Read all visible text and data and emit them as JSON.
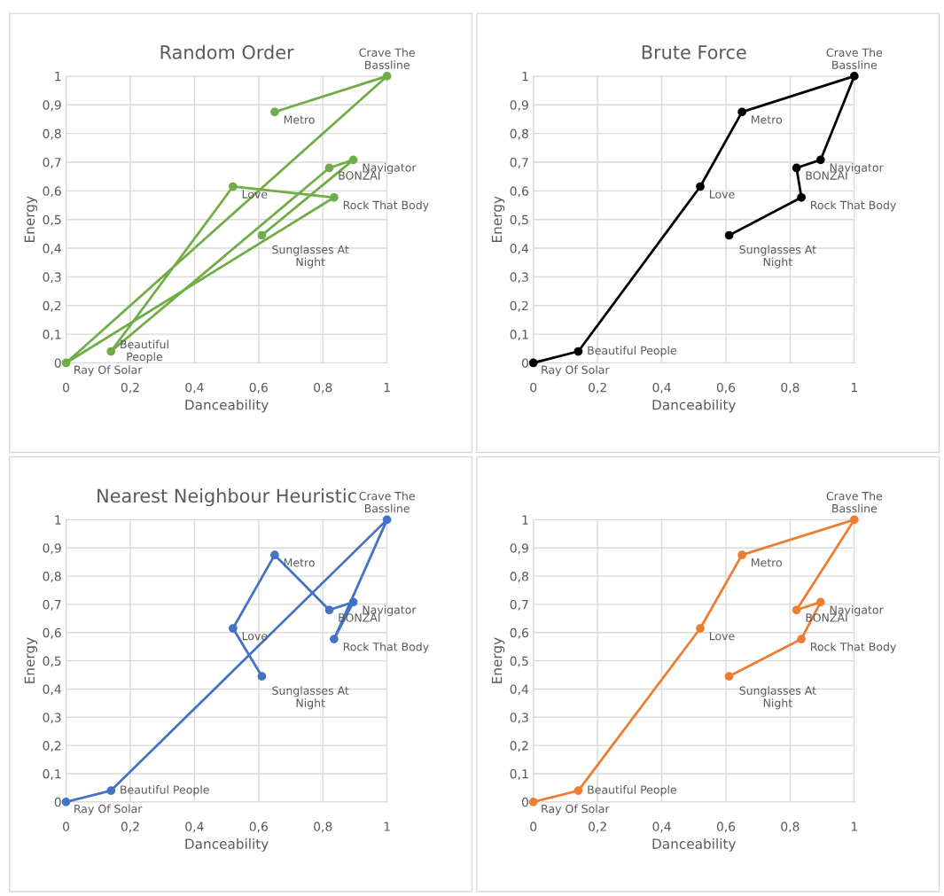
{
  "chart_data": [
    {
      "type": "line",
      "title": "Random Order",
      "xlabel": "Danceability",
      "ylabel": "Energy",
      "xlim": [
        0,
        1
      ],
      "ylim": [
        0,
        1
      ],
      "grid": true,
      "marker": "circle",
      "line_style": "solid",
      "xticks": [
        0,
        {
          "value": 0.2,
          "label": "0,2"
        },
        {
          "value": 0.4,
          "label": "0,4"
        },
        {
          "value": 0.6,
          "label": "0,6"
        },
        {
          "value": 0.8,
          "label": "0,8"
        },
        1
      ],
      "yticks": [
        0,
        {
          "value": 0.1,
          "label": "0,1"
        },
        {
          "value": 0.2,
          "label": "0,2"
        },
        {
          "value": 0.3,
          "label": "0,3"
        },
        {
          "value": 0.4,
          "label": "0,4"
        },
        {
          "value": 0.5,
          "label": "0,5"
        },
        {
          "value": 0.6,
          "label": "0,6"
        },
        {
          "value": 0.7,
          "label": "0,7"
        },
        {
          "value": 0.8,
          "label": "0,8"
        },
        {
          "value": 0.9,
          "label": "0,9"
        },
        1
      ],
      "series": [
        {
          "color": "#70ad47",
          "x": [
            0.65,
            1,
            0,
            0.835,
            0.52,
            0.14,
            0.82,
            0.895,
            0.61
          ],
          "values": [
            0.875,
            1,
            0,
            0.577,
            0.615,
            0.04,
            0.68,
            0.708,
            0.445
          ]
        }
      ],
      "annotations": [
        {
          "text": "Metro",
          "x": 0.65,
          "y": 0.875
        },
        {
          "text": "Crave The\nBassline",
          "x": 1,
          "y": 1
        },
        {
          "text": "Ray Of Solar",
          "x": 0,
          "y": 0
        },
        {
          "text": "Rock That Body",
          "x": 0.835,
          "y": 0.577
        },
        {
          "text": "Love",
          "x": 0.52,
          "y": 0.615
        },
        {
          "text": "Beautiful\nPeople",
          "x": 0.14,
          "y": 0.04
        },
        {
          "text": "BONZAI",
          "x": 0.82,
          "y": 0.68
        },
        {
          "text": "Navigator",
          "x": 0.895,
          "y": 0.708
        },
        {
          "text": "Sunglasses At\nNight",
          "x": 0.61,
          "y": 0.445
        }
      ]
    },
    {
      "type": "line",
      "title": "Brute Force",
      "xlabel": "Danceability",
      "ylabel": "Energy",
      "xlim": [
        0,
        1
      ],
      "ylim": [
        0,
        1
      ],
      "grid": true,
      "marker": "circle",
      "line_style": "solid",
      "xticks": [
        0,
        {
          "value": 0.2,
          "label": "0,2"
        },
        {
          "value": 0.4,
          "label": "0,4"
        },
        {
          "value": 0.6,
          "label": "0,6"
        },
        {
          "value": 0.8,
          "label": "0,8"
        },
        1
      ],
      "yticks": [
        0,
        {
          "value": 0.1,
          "label": "0,1"
        },
        {
          "value": 0.2,
          "label": "0,2"
        },
        {
          "value": 0.3,
          "label": "0,3"
        },
        {
          "value": 0.4,
          "label": "0,4"
        },
        {
          "value": 0.5,
          "label": "0,5"
        },
        {
          "value": 0.6,
          "label": "0,6"
        },
        {
          "value": 0.7,
          "label": "0,7"
        },
        {
          "value": 0.8,
          "label": "0,8"
        },
        {
          "value": 0.9,
          "label": "0,9"
        },
        1
      ],
      "series": [
        {
          "color": "#000000",
          "x": [
            0,
            0.14,
            0.52,
            0.65,
            1,
            0.895,
            0.82,
            0.835,
            0.61
          ],
          "values": [
            0,
            0.04,
            0.615,
            0.875,
            1,
            0.708,
            0.68,
            0.577,
            0.445
          ]
        }
      ],
      "annotations": [
        {
          "text": "Ray Of Solar",
          "x": 0,
          "y": 0
        },
        {
          "text": "Beautiful People",
          "x": 0.14,
          "y": 0.04
        },
        {
          "text": "Love",
          "x": 0.52,
          "y": 0.615
        },
        {
          "text": "Metro",
          "x": 0.65,
          "y": 0.875
        },
        {
          "text": "Crave The\nBassline",
          "x": 1,
          "y": 1
        },
        {
          "text": "Navigator",
          "x": 0.895,
          "y": 0.708
        },
        {
          "text": "BONZAI",
          "x": 0.82,
          "y": 0.68
        },
        {
          "text": "Rock That Body",
          "x": 0.835,
          "y": 0.577
        },
        {
          "text": "Sunglasses At\nNight",
          "x": 0.61,
          "y": 0.445
        }
      ]
    },
    {
      "type": "line",
      "title": "Nearest Neighbour Heuristic",
      "xlabel": "Danceability",
      "ylabel": "Energy",
      "xlim": [
        0,
        1
      ],
      "ylim": [
        0,
        1
      ],
      "grid": true,
      "marker": "circle",
      "line_style": "solid",
      "xticks": [
        0,
        {
          "value": 0.2,
          "label": "0,2"
        },
        {
          "value": 0.4,
          "label": "0,4"
        },
        {
          "value": 0.6,
          "label": "0,6"
        },
        {
          "value": 0.8,
          "label": "0,8"
        },
        1
      ],
      "yticks": [
        0,
        {
          "value": 0.1,
          "label": "0,1"
        },
        {
          "value": 0.2,
          "label": "0,2"
        },
        {
          "value": 0.3,
          "label": "0,3"
        },
        {
          "value": 0.4,
          "label": "0,4"
        },
        {
          "value": 0.5,
          "label": "0,5"
        },
        {
          "value": 0.6,
          "label": "0,6"
        },
        {
          "value": 0.7,
          "label": "0,7"
        },
        {
          "value": 0.8,
          "label": "0,8"
        },
        {
          "value": 0.9,
          "label": "0,9"
        },
        1
      ],
      "series": [
        {
          "color": "#4472c4",
          "x": [
            0,
            0.14,
            1,
            0.835,
            0.895,
            0.82,
            0.65,
            0.52,
            0.61
          ],
          "values": [
            0,
            0.04,
            1,
            0.577,
            0.708,
            0.68,
            0.875,
            0.615,
            0.445
          ]
        }
      ],
      "annotations": [
        {
          "text": "Ray Of Solar",
          "x": 0,
          "y": 0
        },
        {
          "text": "Beautiful People",
          "x": 0.14,
          "y": 0.04
        },
        {
          "text": "Crave The\nBassline",
          "x": 1,
          "y": 1
        },
        {
          "text": "Rock That Body",
          "x": 0.835,
          "y": 0.577
        },
        {
          "text": "Navigator",
          "x": 0.895,
          "y": 0.708
        },
        {
          "text": "BONZAI",
          "x": 0.82,
          "y": 0.68
        },
        {
          "text": "Metro",
          "x": 0.65,
          "y": 0.875
        },
        {
          "text": "Love",
          "x": 0.52,
          "y": 0.615
        },
        {
          "text": "Sunglasses At\nNight",
          "x": 0.61,
          "y": 0.445
        }
      ]
    },
    {
      "type": "line",
      "xlabel": "Danceability",
      "ylabel": "Energy",
      "xlim": [
        0,
        1
      ],
      "ylim": [
        0,
        1
      ],
      "grid": true,
      "marker": "circle",
      "line_style": "solid",
      "xticks": [
        0,
        {
          "value": 0.2,
          "label": "0,2"
        },
        {
          "value": 0.4,
          "label": "0,4"
        },
        {
          "value": 0.6,
          "label": "0,6"
        },
        {
          "value": 0.8,
          "label": "0,8"
        },
        1
      ],
      "yticks": [
        0,
        {
          "value": 0.1,
          "label": "0,1"
        },
        {
          "value": 0.2,
          "label": "0,2"
        },
        {
          "value": 0.3,
          "label": "0,3"
        },
        {
          "value": 0.4,
          "label": "0,4"
        },
        {
          "value": 0.5,
          "label": "0,5"
        },
        {
          "value": 0.6,
          "label": "0,6"
        },
        {
          "value": 0.7,
          "label": "0,7"
        },
        {
          "value": 0.8,
          "label": "0,8"
        },
        {
          "value": 0.9,
          "label": "0,9"
        },
        1
      ],
      "series": [
        {
          "color": "#ed7d31",
          "x": [
            0,
            0.14,
            0.52,
            0.65,
            1,
            0.82,
            0.895,
            0.835,
            0.61
          ],
          "values": [
            0,
            0.04,
            0.615,
            0.875,
            1,
            0.68,
            0.708,
            0.577,
            0.445
          ]
        }
      ],
      "annotations": [
        {
          "text": "Ray Of Solar",
          "x": 0,
          "y": 0
        },
        {
          "text": "Beautiful People",
          "x": 0.14,
          "y": 0.04
        },
        {
          "text": "Love",
          "x": 0.52,
          "y": 0.615
        },
        {
          "text": "Metro",
          "x": 0.65,
          "y": 0.875
        },
        {
          "text": "Crave The\nBassline",
          "x": 1,
          "y": 1
        },
        {
          "text": "BONZAI",
          "x": 0.82,
          "y": 0.68
        },
        {
          "text": "Navigator",
          "x": 0.895,
          "y": 0.708
        },
        {
          "text": "Rock That Body",
          "x": 0.835,
          "y": 0.577
        },
        {
          "text": "Sunglasses At\nNight",
          "x": 0.61,
          "y": 0.445
        }
      ]
    }
  ]
}
